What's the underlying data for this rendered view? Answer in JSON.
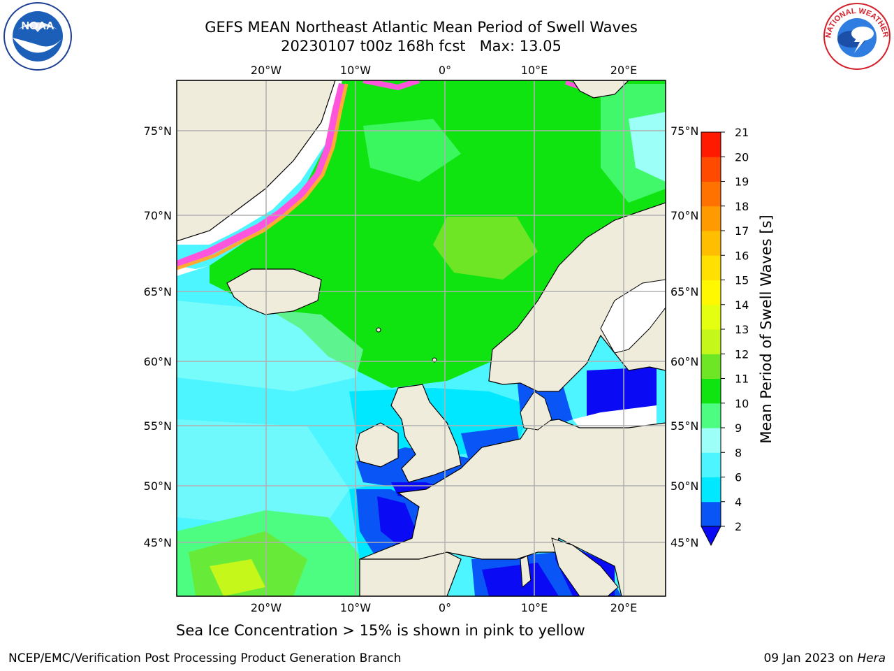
{
  "title": {
    "line1": "GEFS MEAN Northeast Atlantic Mean Period of Swell Waves",
    "line2": "20230107 t00z 168h fcst   Max: 13.05"
  },
  "logos": {
    "noaa": {
      "text": "NOAA",
      "ring_text": "NATIONAL OCEANIC AND ATMOSPHERIC ADMINISTRATION · U.S. DEPARTMENT OF COMMERCE"
    },
    "nws": {
      "ring_text": "NATIONAL WEATHER SERVICE"
    }
  },
  "map": {
    "lon_labels": [
      "20°W",
      "10°W",
      "0°",
      "10°E",
      "20°E"
    ],
    "lat_labels": [
      "75°N",
      "70°N",
      "65°N",
      "60°N",
      "55°N",
      "50°N",
      "45°N"
    ],
    "colors": {
      "land": "#efecdc",
      "ice_pink": "#ff55dd",
      "ice_orange": "#ffaa33",
      "grid": "#b0b0b0"
    }
  },
  "colorbar": {
    "label": "Mean Period of Swell Waves [s]",
    "ticks": [
      "2",
      "4",
      "6",
      "8",
      "9",
      "10",
      "11",
      "12",
      "13",
      "14",
      "15",
      "16",
      "17",
      "18",
      "19",
      "20",
      "21"
    ],
    "colors": [
      "#0a55f5",
      "#00e8ff",
      "#4cf5ff",
      "#9cfff8",
      "#4dfd82",
      "#10e410",
      "#6ee625",
      "#c5f71a",
      "#e5ff10",
      "#fff800",
      "#ffe000",
      "#ffbf00",
      "#ff9a00",
      "#ff7200",
      "#ff4a00",
      "#ff1a00"
    ],
    "under_color": "#0a0af5"
  },
  "note": "Sea Ice Concentration > 15% is shown in pink to yellow",
  "footer": {
    "credit": "NCEP/EMC/Verification Post Processing Product Generation Branch",
    "date": "09 Jan 2023 on",
    "machine": "Hera"
  }
}
